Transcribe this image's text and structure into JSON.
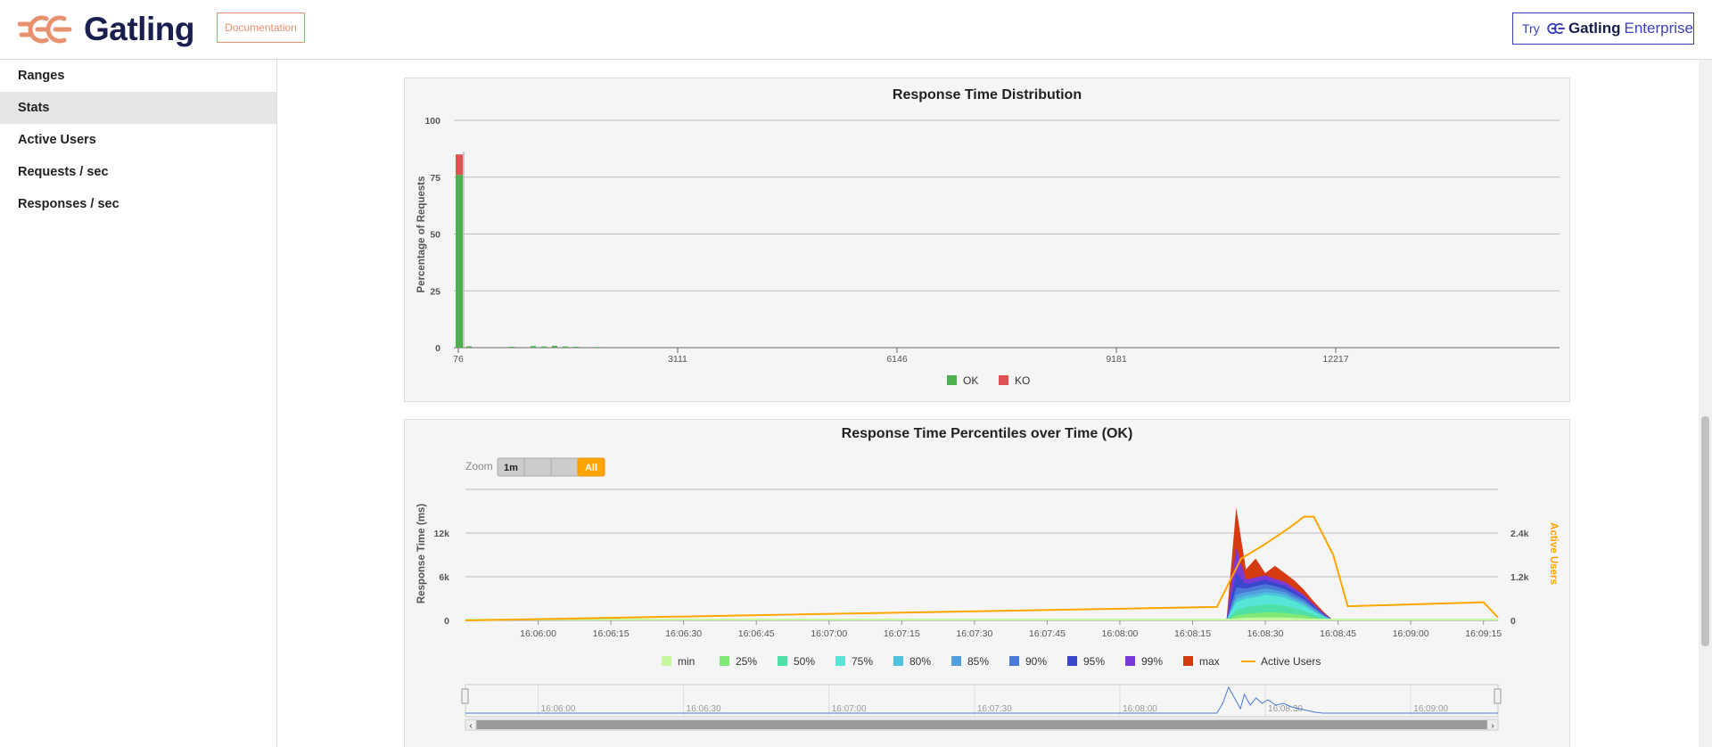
{
  "header": {
    "brand": "Gatling",
    "doc_button": "Documentation",
    "try_prefix": "Try",
    "try_brand": "Gatling",
    "try_suffix": "Enterprise"
  },
  "sidebar": {
    "items": [
      {
        "label": "Ranges",
        "active": false
      },
      {
        "label": "Stats",
        "active": true
      },
      {
        "label": "Active Users",
        "active": false
      },
      {
        "label": "Requests / sec",
        "active": false
      },
      {
        "label": "Responses / sec",
        "active": false
      }
    ]
  },
  "colors": {
    "accent": "#e8916e",
    "brand": "#1a1f4f",
    "enterprise": "#3b3fb8",
    "ok": "#4caf50",
    "ko": "#e05252",
    "active_users": "#ffa500"
  },
  "chart_data": [
    {
      "type": "bar",
      "title": "Response Time Distribution",
      "ylabel": "Percentage of Requests",
      "xlabel": "",
      "ylim": [
        0,
        100
      ],
      "y_ticks": [
        "0",
        "25",
        "50",
        "75",
        "100"
      ],
      "x_ticks": [
        "76",
        "3111",
        "6146",
        "9181",
        "12217"
      ],
      "series": [
        {
          "name": "OK",
          "color": "#4caf50",
          "values": [
            76,
            0.6,
            0,
            0,
            0,
            0.4,
            0,
            0.7,
            0.5,
            0.8,
            0.5,
            0.4,
            0,
            0.3
          ]
        },
        {
          "name": "KO",
          "color": "#e05252",
          "values": [
            9,
            0,
            0,
            0,
            0,
            0,
            0,
            0,
            0,
            0,
            0,
            0,
            0,
            0
          ]
        }
      ],
      "legend": "bottom-center"
    },
    {
      "type": "area",
      "title": "Response Time Percentiles over Time (OK)",
      "ylabel": "Response Time (ms)",
      "y2label": "Active Users",
      "y_ticks": [
        "0",
        "6k",
        "12k"
      ],
      "y2_ticks": [
        "0",
        "1.2k",
        "2.4k"
      ],
      "x_ticks": [
        "16:06:00",
        "16:06:15",
        "16:06:30",
        "16:06:45",
        "16:07:00",
        "16:07:15",
        "16:07:30",
        "16:07:45",
        "16:08:00",
        "16:08:15",
        "16:08:30",
        "16:08:45",
        "16:09:00",
        "16:09:15"
      ],
      "zoom": {
        "label": "Zoom",
        "buttons": [
          "1m",
          "",
          "",
          "All"
        ],
        "active": "All"
      },
      "legend": [
        "min",
        "25%",
        "50%",
        "75%",
        "80%",
        "85%",
        "90%",
        "95%",
        "99%",
        "max",
        "Active Users"
      ],
      "legend_colors": [
        "#c4f79e",
        "#7fe876",
        "#4fe0a5",
        "#56e6d8",
        "#4fc1dc",
        "#4fa0dc",
        "#4a78d6",
        "#3a47cc",
        "#7a3ad6",
        "#d63a10",
        "#ffa500"
      ],
      "percentiles": {
        "x": [
          "16:08:22",
          "16:08:24",
          "16:08:26",
          "16:08:28",
          "16:08:30",
          "16:08:32",
          "16:08:34",
          "16:08:36",
          "16:08:38",
          "16:08:40",
          "16:08:42",
          "16:08:44"
        ],
        "min": [
          0,
          300,
          400,
          400,
          400,
          400,
          400,
          350,
          300,
          200,
          100,
          0
        ],
        "p25": [
          0,
          700,
          900,
          1000,
          1100,
          1100,
          1000,
          900,
          700,
          400,
          200,
          0
        ],
        "p50": [
          0,
          1400,
          1800,
          2000,
          2200,
          2200,
          2000,
          1700,
          1300,
          800,
          300,
          0
        ],
        "p75": [
          0,
          2500,
          3000,
          3200,
          3500,
          3400,
          3100,
          2600,
          2000,
          1200,
          500,
          0
        ],
        "p80": [
          0,
          3000,
          3400,
          3600,
          3900,
          3800,
          3500,
          2900,
          2300,
          1400,
          600,
          0
        ],
        "p85": [
          0,
          3500,
          3900,
          4100,
          4400,
          4200,
          3900,
          3200,
          2600,
          1600,
          700,
          0
        ],
        "p90": [
          0,
          4500,
          4400,
          4700,
          5000,
          4700,
          4300,
          3600,
          2900,
          1800,
          800,
          0
        ],
        "p95": [
          0,
          6500,
          5000,
          5300,
          5600,
          5200,
          4800,
          4000,
          3200,
          2000,
          900,
          0
        ],
        "p99": [
          0,
          10000,
          5600,
          5900,
          6200,
          5700,
          5300,
          4400,
          3500,
          2200,
          1000,
          0
        ],
        "max": [
          0,
          15500,
          7000,
          8500,
          6500,
          7500,
          6500,
          5500,
          4200,
          2600,
          1200,
          0
        ]
      },
      "active_users": {
        "x": [
          "16:05:45",
          "16:08:20",
          "16:08:25",
          "16:08:30",
          "16:08:35",
          "16:08:38",
          "16:08:40",
          "16:08:44",
          "16:08:47",
          "16:09:15",
          "16:09:18"
        ],
        "values": [
          0,
          370,
          1700,
          2100,
          2550,
          2850,
          2850,
          1800,
          390,
          500,
          80
        ]
      }
    }
  ],
  "navigator": {
    "labels": [
      "16:06:00",
      "16:06:30",
      "16:07:00",
      "16:07:30",
      "16:08:00",
      "16:08:30",
      "16:09:00"
    ],
    "left_arrow": "‹",
    "right_arrow": "›"
  }
}
